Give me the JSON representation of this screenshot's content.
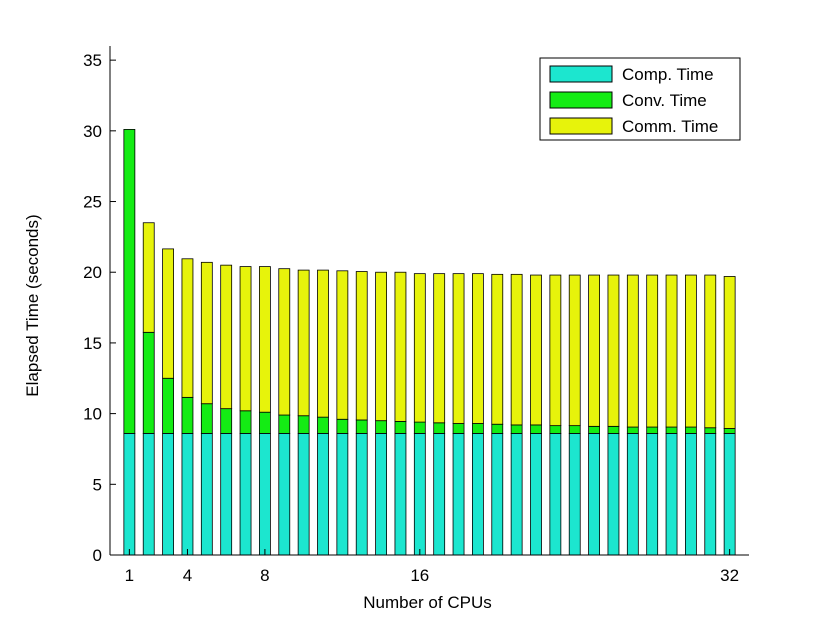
{
  "chart_data": {
    "type": "bar",
    "stacked": true,
    "title": "",
    "xlabel": "Number of CPUs",
    "ylabel": "Elapsed Time (seconds)",
    "ylim": [
      0,
      36
    ],
    "xlim": [
      0,
      33
    ],
    "yticks": [
      0,
      5,
      10,
      15,
      20,
      25,
      30,
      35
    ],
    "xticks": [
      1,
      4,
      8,
      16,
      32
    ],
    "legend_position": "top-right",
    "grid": false,
    "colors": {
      "Comp. Time": "#1ce6cf",
      "Conv. Time": "#14ec14",
      "Comm. Time": "#e7f30b",
      "edge": "#000000"
    },
    "categories": [
      1,
      2,
      3,
      4,
      5,
      6,
      7,
      8,
      9,
      10,
      11,
      12,
      13,
      14,
      15,
      16,
      17,
      18,
      19,
      20,
      21,
      22,
      23,
      24,
      25,
      26,
      27,
      28,
      29,
      30,
      31,
      32
    ],
    "series": [
      {
        "name": "Comp. Time",
        "values": [
          8.6,
          8.6,
          8.6,
          8.6,
          8.6,
          8.6,
          8.6,
          8.6,
          8.6,
          8.6,
          8.6,
          8.6,
          8.6,
          8.6,
          8.6,
          8.6,
          8.6,
          8.6,
          8.6,
          8.6,
          8.6,
          8.6,
          8.6,
          8.6,
          8.6,
          8.6,
          8.6,
          8.6,
          8.6,
          8.6,
          8.6,
          8.6
        ]
      },
      {
        "name": "Conv. Time",
        "values": [
          21.5,
          7.15,
          3.9,
          2.55,
          2.1,
          1.75,
          1.6,
          1.5,
          1.3,
          1.25,
          1.15,
          1.0,
          0.95,
          0.9,
          0.85,
          0.8,
          0.75,
          0.7,
          0.7,
          0.65,
          0.6,
          0.6,
          0.55,
          0.55,
          0.5,
          0.5,
          0.45,
          0.45,
          0.45,
          0.45,
          0.4,
          0.35
        ]
      },
      {
        "name": "Comm. Time",
        "values": [
          0,
          7.75,
          9.15,
          9.8,
          10.0,
          10.15,
          10.2,
          10.3,
          10.35,
          10.3,
          10.4,
          10.5,
          10.5,
          10.5,
          10.55,
          10.5,
          10.55,
          10.6,
          10.6,
          10.6,
          10.65,
          10.6,
          10.65,
          10.65,
          10.7,
          10.7,
          10.75,
          10.75,
          10.75,
          10.75,
          10.8,
          10.75
        ]
      }
    ]
  }
}
